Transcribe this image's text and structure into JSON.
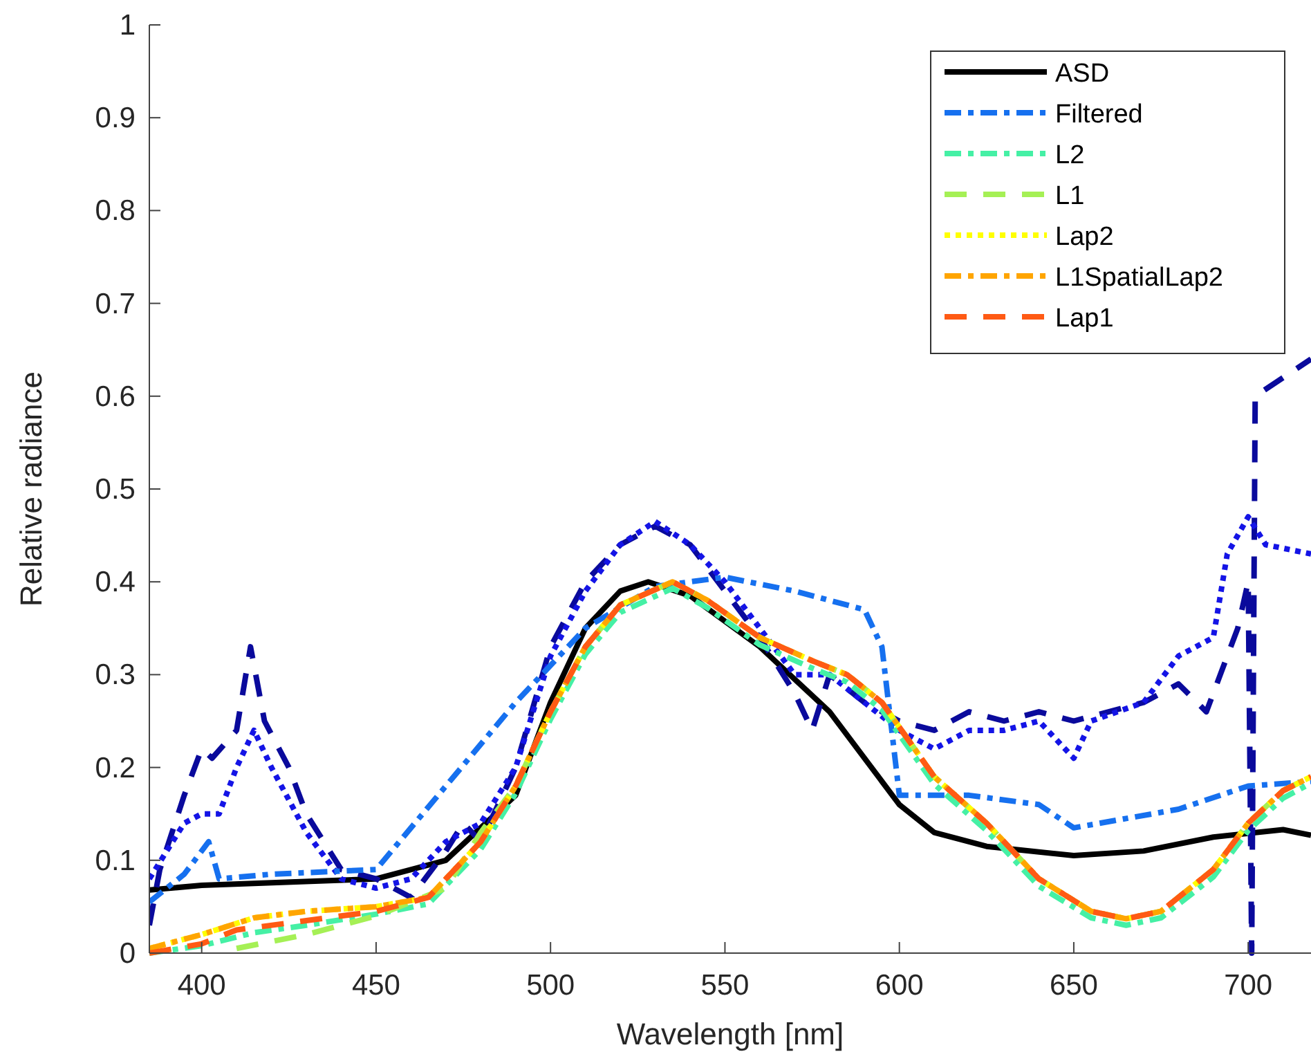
{
  "chart_data": {
    "type": "line",
    "xlabel": "Wavelength [nm]",
    "ylabel": "Relative radiance",
    "xlim": [
      385,
      718
    ],
    "ylim": [
      0,
      1
    ],
    "xticks": [
      400,
      450,
      500,
      550,
      600,
      650,
      700
    ],
    "yticks": [
      0,
      0.1,
      0.2,
      0.3,
      0.4,
      0.5,
      0.6,
      0.7,
      0.8,
      0.9,
      1
    ],
    "grid": false,
    "legend": "top right",
    "marker": "none",
    "series": [
      {
        "name": "ASD",
        "color": "#000000",
        "line_style": "solid",
        "x": [
          385,
          400,
          450,
          470,
          490,
          500,
          510,
          520,
          528,
          540,
          560,
          580,
          600,
          610,
          625,
          650,
          670,
          690,
          710,
          718
        ],
        "values": [
          0.068,
          0.073,
          0.08,
          0.1,
          0.17,
          0.27,
          0.35,
          0.39,
          0.4,
          0.385,
          0.33,
          0.26,
          0.16,
          0.13,
          0.115,
          0.105,
          0.11,
          0.125,
          0.133,
          0.127
        ]
      },
      {
        "color": "#0a0a9c",
        "line_style": "dashed",
        "x": [
          385,
          388,
          395,
          400,
          403,
          410,
          414,
          418,
          425,
          430,
          440,
          450,
          460,
          470,
          475,
          480,
          490,
          500,
          510,
          520,
          530,
          540,
          550,
          560,
          570,
          575,
          580,
          590,
          600,
          610,
          620,
          630,
          640,
          650,
          660,
          670,
          680,
          688,
          692,
          697,
          700,
          701,
          702,
          718
        ],
        "values": [
          0.03,
          0.09,
          0.17,
          0.22,
          0.21,
          0.24,
          0.33,
          0.25,
          0.2,
          0.15,
          0.09,
          0.08,
          0.06,
          0.11,
          0.14,
          0.12,
          0.2,
          0.33,
          0.4,
          0.44,
          0.46,
          0.44,
          0.39,
          0.34,
          0.28,
          0.24,
          0.3,
          0.27,
          0.25,
          0.24,
          0.26,
          0.25,
          0.26,
          0.25,
          0.26,
          0.27,
          0.29,
          0.26,
          0.3,
          0.35,
          0.4,
          0,
          0.6,
          0.64
        ]
      },
      {
        "color": "#1414e6",
        "line_style": "dotted",
        "x": [
          385,
          395,
          400,
          405,
          410,
          415,
          420,
          430,
          440,
          450,
          460,
          470,
          480,
          490,
          500,
          510,
          520,
          530,
          540,
          550,
          560,
          570,
          580,
          590,
          600,
          610,
          620,
          630,
          640,
          650,
          655,
          670,
          680,
          690,
          694,
          700,
          705,
          718
        ],
        "values": [
          0.08,
          0.14,
          0.15,
          0.15,
          0.2,
          0.24,
          0.2,
          0.13,
          0.08,
          0.07,
          0.08,
          0.12,
          0.14,
          0.2,
          0.32,
          0.39,
          0.44,
          0.465,
          0.44,
          0.4,
          0.35,
          0.3,
          0.3,
          0.27,
          0.24,
          0.22,
          0.24,
          0.24,
          0.25,
          0.21,
          0.25,
          0.27,
          0.32,
          0.34,
          0.43,
          0.47,
          0.44,
          0.43
        ]
      },
      {
        "name": "Filtered",
        "color": "#1670ef",
        "line_style": "dashdot",
        "x": [
          385,
          395,
          402,
          405,
          420,
          450,
          470,
          490,
          510,
          530,
          550,
          570,
          590,
          595,
          600,
          620,
          640,
          650,
          680,
          700,
          718
        ],
        "values": [
          0.055,
          0.085,
          0.12,
          0.08,
          0.085,
          0.09,
          0.18,
          0.27,
          0.35,
          0.395,
          0.405,
          0.39,
          0.37,
          0.33,
          0.17,
          0.17,
          0.16,
          0.135,
          0.155,
          0.18,
          0.185
        ]
      },
      {
        "name": "L2",
        "color": "#45f0a5",
        "line_style": "dashdot",
        "x": [
          385,
          400,
          415,
          430,
          450,
          465,
          480,
          490,
          500,
          510,
          520,
          535,
          545,
          560,
          575,
          585,
          595,
          610,
          625,
          640,
          655,
          665,
          675,
          690,
          700,
          710,
          718
        ],
        "values": [
          0,
          0.008,
          0.022,
          0.03,
          0.042,
          0.053,
          0.112,
          0.172,
          0.252,
          0.322,
          0.367,
          0.393,
          0.372,
          0.332,
          0.307,
          0.292,
          0.262,
          0.182,
          0.132,
          0.072,
          0.038,
          0.03,
          0.038,
          0.082,
          0.132,
          0.167,
          0.183
        ]
      },
      {
        "name": "L1",
        "color": "#a5f055",
        "line_style": "dashed",
        "x": [
          410,
          430,
          450,
          470,
          480,
          490,
          500,
          510,
          520,
          535,
          545,
          560,
          575,
          585,
          595,
          610,
          625,
          640,
          655,
          665,
          675,
          690,
          700,
          710,
          718
        ],
        "values": [
          0.005,
          0.02,
          0.04,
          0.07,
          0.13,
          0.18,
          0.26,
          0.33,
          0.375,
          0.4,
          0.38,
          0.34,
          0.315,
          0.3,
          0.27,
          0.19,
          0.14,
          0.08,
          0.045,
          0.037,
          0.045,
          0.09,
          0.14,
          0.175,
          0.19
        ]
      },
      {
        "name": "Lap2",
        "color": "#ffff00",
        "line_style": "dotted",
        "x": [
          385,
          400,
          415,
          430,
          450,
          465,
          480,
          490,
          500,
          510,
          520,
          535,
          545,
          560,
          575,
          585,
          595,
          610,
          625,
          640,
          655,
          665,
          675,
          690,
          700,
          710,
          718
        ],
        "values": [
          0.005,
          0.02,
          0.038,
          0.045,
          0.05,
          0.06,
          0.12,
          0.18,
          0.26,
          0.33,
          0.375,
          0.4,
          0.38,
          0.34,
          0.315,
          0.3,
          0.27,
          0.19,
          0.14,
          0.08,
          0.045,
          0.037,
          0.045,
          0.09,
          0.14,
          0.175,
          0.19
        ]
      },
      {
        "name": "L1SpatialLap2",
        "color": "#ffa500",
        "line_style": "dashdot",
        "x": [
          385,
          400,
          415,
          430,
          450,
          465,
          480,
          490,
          500,
          510,
          520,
          535,
          545,
          560,
          575,
          585,
          595,
          610,
          625,
          640,
          655,
          665,
          675,
          690,
          700,
          710,
          718
        ],
        "values": [
          0.005,
          0.02,
          0.038,
          0.045,
          0.05,
          0.06,
          0.12,
          0.18,
          0.26,
          0.33,
          0.375,
          0.4,
          0.38,
          0.34,
          0.315,
          0.3,
          0.27,
          0.19,
          0.14,
          0.08,
          0.045,
          0.037,
          0.045,
          0.09,
          0.14,
          0.175,
          0.19
        ]
      },
      {
        "name": "Lap1",
        "color": "#ff5a14",
        "line_style": "dashed",
        "x": [
          385,
          400,
          410,
          430,
          450,
          465,
          480,
          490,
          500,
          510,
          520,
          535,
          545,
          560,
          575,
          585,
          595,
          610,
          625,
          640,
          655,
          665,
          675,
          690,
          700,
          710,
          718
        ],
        "values": [
          0,
          0.01,
          0.025,
          0.035,
          0.045,
          0.06,
          0.12,
          0.18,
          0.26,
          0.33,
          0.375,
          0.4,
          0.38,
          0.34,
          0.315,
          0.3,
          0.27,
          0.19,
          0.14,
          0.08,
          0.045,
          0.037,
          0.045,
          0.09,
          0.14,
          0.175,
          0.19
        ]
      }
    ]
  }
}
